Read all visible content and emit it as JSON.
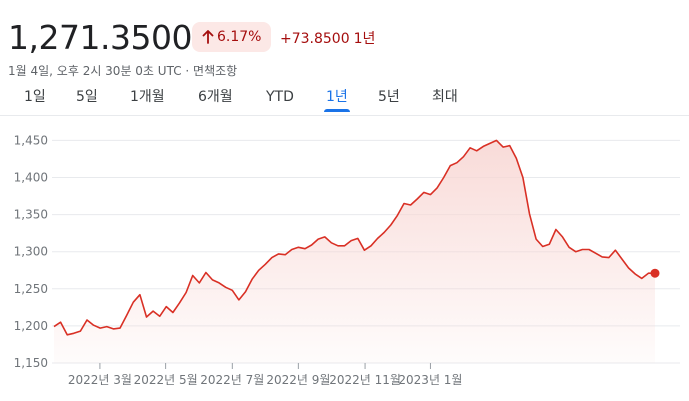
{
  "quote": {
    "price": "1,271.3500",
    "percent_change": "6.17%",
    "abs_change": "+73.8500",
    "period_label": "1년",
    "timestamp_line": "1월 4일, 오후 2시 30분 0초 UTC · 면책조항",
    "direction_icon": "arrow-up-icon",
    "accent_color": "#a50e0e",
    "chip_bg": "#fce8e6"
  },
  "tabs": [
    {
      "label": "1일",
      "active": false
    },
    {
      "label": "5일",
      "active": false
    },
    {
      "label": "1개월",
      "active": false
    },
    {
      "label": "6개월",
      "active": false
    },
    {
      "label": "YTD",
      "active": false
    },
    {
      "label": "1년",
      "active": true
    },
    {
      "label": "5년",
      "active": false
    },
    {
      "label": "최대",
      "active": false
    }
  ],
  "chart_data": {
    "type": "area",
    "line_color": "#d93025",
    "fill_color": "#f8d7d4",
    "grid": true,
    "ylim": [
      1150,
      1460
    ],
    "y_ticks": [
      1150,
      1200,
      1250,
      1300,
      1350,
      1400,
      1450
    ],
    "y_tick_labels": [
      "1,150",
      "1,200",
      "1,250",
      "1,300",
      "1,350",
      "1,400",
      "1,450"
    ],
    "x_ticks": [
      {
        "index": 6.95,
        "label": "2022년 3월"
      },
      {
        "index": 16.9,
        "label": "2022년 5월"
      },
      {
        "index": 27.0,
        "label": "2022년 7월"
      },
      {
        "index": 37.0,
        "label": "2022년 9월"
      },
      {
        "index": 47.1,
        "label": "2022년 11월"
      },
      {
        "index": 57.0,
        "label": "2023년 1월"
      }
    ],
    "series": [
      {
        "values": [
          1199,
          1205,
          1188,
          1190,
          1193,
          1208,
          1201,
          1197,
          1199,
          1196,
          1197,
          1214,
          1232,
          1242,
          1212,
          1220,
          1213,
          1226,
          1218,
          1231,
          1245,
          1268,
          1258,
          1272,
          1262,
          1258,
          1252,
          1248,
          1235,
          1246,
          1263,
          1275,
          1283,
          1292,
          1297,
          1296,
          1303,
          1306,
          1304,
          1309,
          1317,
          1320,
          1312,
          1308,
          1308,
          1315,
          1318,
          1302,
          1308,
          1318,
          1326,
          1336,
          1349,
          1365,
          1363,
          1371,
          1380,
          1377,
          1386,
          1400,
          1416,
          1420,
          1428,
          1440,
          1436,
          1442,
          1446,
          1450,
          1441,
          1443,
          1426,
          1400,
          1351,
          1317,
          1307,
          1310,
          1330,
          1320,
          1306,
          1300,
          1303,
          1303,
          1298,
          1293,
          1292,
          1302,
          1290,
          1278,
          1270,
          1264,
          1271,
          1271
        ]
      }
    ],
    "end_marker": true
  }
}
